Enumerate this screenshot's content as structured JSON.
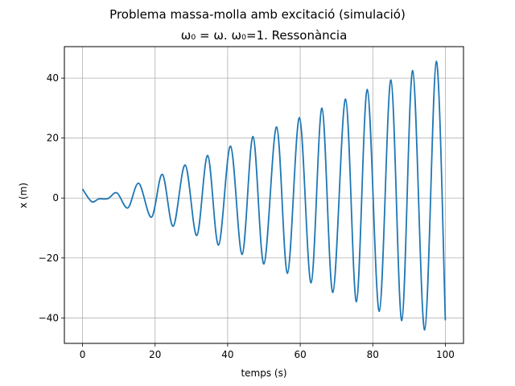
{
  "figure": {
    "suptitle": "Problema massa-molla amb excitació (simulació)",
    "title": "ω₀ = ω. ω₀=1.  Ressonància"
  },
  "chart_data": {
    "type": "line",
    "title": "ω₀ = ω. ω₀=1.  Ressonància",
    "xlabel": "temps (s)",
    "ylabel": "x (m)",
    "xlim": [
      -5,
      105
    ],
    "ylim": [
      -48.5,
      50.5
    ],
    "xticks": [
      0,
      20,
      40,
      60,
      80,
      100
    ],
    "xtick_labels": [
      "0",
      "20",
      "40",
      "60",
      "80",
      "100"
    ],
    "yticks": [
      -40,
      -20,
      0,
      20,
      40
    ],
    "ytick_labels": [
      "−40",
      "−20",
      "0",
      "20",
      "40"
    ],
    "grid": true,
    "line_color": "#1f77b4",
    "series": [
      {
        "x": [
          0,
          2.5,
          4.5,
          7,
          9.5,
          12.5,
          15.5,
          19,
          22,
          25,
          28.3,
          31.5,
          34.5,
          37.5,
          40.8,
          44,
          47,
          50,
          53.5,
          56.5,
          59.8,
          63,
          66,
          69,
          72.5,
          75.5,
          78.5,
          81.8,
          85,
          88,
          91,
          94.3,
          97.5,
          100
        ],
        "y": [
          3,
          -1.2,
          -0.3,
          -0.2,
          1.7,
          -3.3,
          4.9,
          -6.4,
          7.9,
          -9.4,
          11,
          -12.5,
          14.2,
          -15.7,
          17.3,
          -18.8,
          20.5,
          -22,
          23.7,
          -25.1,
          26.8,
          -28.3,
          30,
          -31.5,
          33,
          -34.6,
          36.2,
          -37.8,
          39.4,
          -40.9,
          42.5,
          -44,
          45.6,
          -40.8
        ]
      }
    ]
  }
}
